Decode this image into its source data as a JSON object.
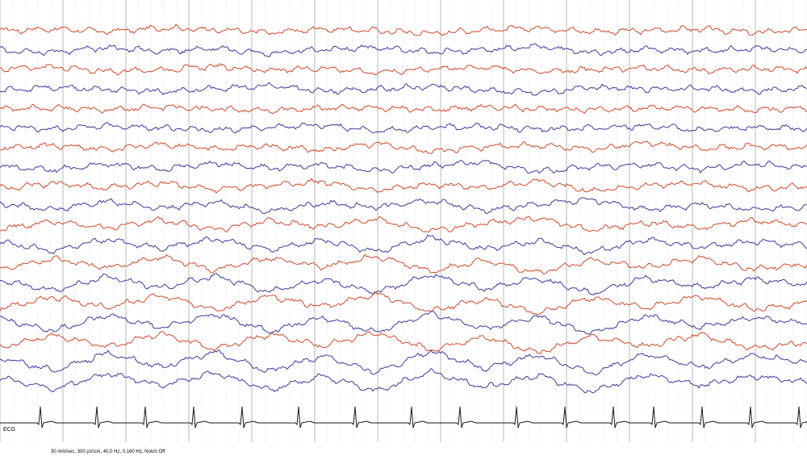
{
  "recording": {
    "settings_text": "30 mm/sec, 300 µV/cm, 40,0 Hz, 0,160 Hz, Notch Off",
    "ecg_label": "ECG"
  },
  "colors": {
    "odd_channel": "#d24a2c",
    "even_channel": "#3d3a9e",
    "ecg": "#1a1a1a",
    "major_grid": "#a8a8a8",
    "minor_grid": "#cfcfcf"
  },
  "chart_data": {
    "type": "line",
    "title": "",
    "xlabel": "",
    "ylabel": "",
    "grid": true,
    "channel_count": 19,
    "series": [
      {
        "color": "#d24a2c",
        "values": [
          0,
          2,
          -1,
          3,
          1,
          -2,
          2,
          0,
          -3,
          1,
          3,
          -1,
          0,
          2,
          -2,
          1
        ]
      },
      {
        "color": "#3d3a9e",
        "values": [
          0,
          -2,
          3,
          -1,
          2,
          -4,
          1,
          3,
          -2,
          0,
          4,
          -3,
          1,
          -1,
          2,
          0
        ]
      },
      {
        "color": "#d24a2c",
        "values": [
          1,
          3,
          -2,
          0,
          4,
          -1,
          2,
          -3,
          1,
          3,
          -2,
          0,
          2,
          -1,
          1,
          0
        ]
      },
      {
        "color": "#3d3a9e",
        "values": [
          -1,
          2,
          0,
          -3,
          1,
          4,
          -2,
          0,
          3,
          -1,
          -4,
          2,
          0,
          1,
          -2,
          1
        ]
      },
      {
        "color": "#d24a2c",
        "values": [
          0,
          1,
          -1,
          2,
          0,
          -2,
          1,
          1,
          -1,
          2,
          0,
          -1,
          1,
          0,
          -1,
          1
        ]
      },
      {
        "color": "#3d3a9e",
        "values": [
          2,
          -1,
          3,
          0,
          -2,
          1,
          4,
          -3,
          1,
          2,
          -1,
          0,
          3,
          -2,
          1,
          0
        ]
      },
      {
        "color": "#d24a2c",
        "values": [
          0,
          3,
          -2,
          4,
          -1,
          2,
          -3,
          5,
          -4,
          1,
          3,
          -2,
          6,
          -1,
          2,
          0
        ]
      },
      {
        "color": "#3d3a9e",
        "values": [
          1,
          -3,
          4,
          -2,
          5,
          -1,
          3,
          -4,
          2,
          6,
          -5,
          1,
          3,
          -2,
          4,
          0
        ]
      },
      {
        "color": "#d24a2c",
        "values": [
          -2,
          4,
          -1,
          5,
          -3,
          2,
          6,
          -4,
          3,
          -1,
          7,
          -5,
          2,
          4,
          -2,
          1
        ]
      },
      {
        "color": "#3d3a9e",
        "values": [
          3,
          -4,
          6,
          -2,
          5,
          -6,
          4,
          -1,
          7,
          -5,
          3,
          8,
          -4,
          2,
          -3,
          0
        ]
      },
      {
        "color": "#d24a2c",
        "values": [
          -3,
          5,
          -2,
          7,
          -4,
          6,
          -1,
          8,
          -6,
          3,
          9,
          -5,
          4,
          -2,
          6,
          1
        ]
      },
      {
        "color": "#3d3a9e",
        "values": [
          4,
          -6,
          7,
          -3,
          8,
          -5,
          6,
          -7,
          9,
          -4,
          5,
          -8,
          7,
          -2,
          5,
          0
        ]
      },
      {
        "color": "#d24a2c",
        "values": [
          -4,
          7,
          -3,
          9,
          -6,
          8,
          -2,
          10,
          -7,
          5,
          -9,
          6,
          -3,
          8,
          -5,
          1
        ]
      },
      {
        "color": "#3d3a9e",
        "values": [
          5,
          -7,
          9,
          -4,
          10,
          -8,
          6,
          -9,
          11,
          -5,
          7,
          -10,
          8,
          -3,
          6,
          0
        ]
      },
      {
        "color": "#d24a2c",
        "values": [
          -5,
          8,
          -4,
          10,
          -7,
          9,
          -3,
          11,
          -8,
          6,
          -10,
          7,
          -4,
          9,
          -6,
          1
        ]
      },
      {
        "color": "#3d3a9e",
        "values": [
          6,
          -8,
          10,
          -5,
          11,
          -9,
          7,
          -10,
          12,
          -6,
          8,
          -11,
          9,
          -4,
          7,
          0
        ]
      },
      {
        "color": "#d24a2c",
        "values": [
          -5,
          9,
          -4,
          11,
          -7,
          10,
          -3,
          12,
          -8,
          7,
          -11,
          8,
          -4,
          10,
          -6,
          1
        ]
      },
      {
        "color": "#3d3a9e",
        "values": [
          6,
          -9,
          11,
          -5,
          12,
          -10,
          8,
          -11,
          13,
          -7,
          9,
          -12,
          10,
          -5,
          8,
          0
        ]
      },
      {
        "color": "#3d3a9e",
        "values": [
          5,
          -8,
          10,
          -4,
          11,
          -9,
          7,
          -10,
          12,
          -6,
          8,
          -11,
          9,
          -4,
          7,
          0
        ]
      }
    ],
    "ecg": {
      "name": "ECG",
      "color": "#1a1a1a",
      "beat_positions": [
        0.05,
        0.12,
        0.18,
        0.24,
        0.3,
        0.37,
        0.44,
        0.51,
        0.57,
        0.64,
        0.7,
        0.76,
        0.81,
        0.87,
        0.93,
        0.99
      ]
    }
  }
}
